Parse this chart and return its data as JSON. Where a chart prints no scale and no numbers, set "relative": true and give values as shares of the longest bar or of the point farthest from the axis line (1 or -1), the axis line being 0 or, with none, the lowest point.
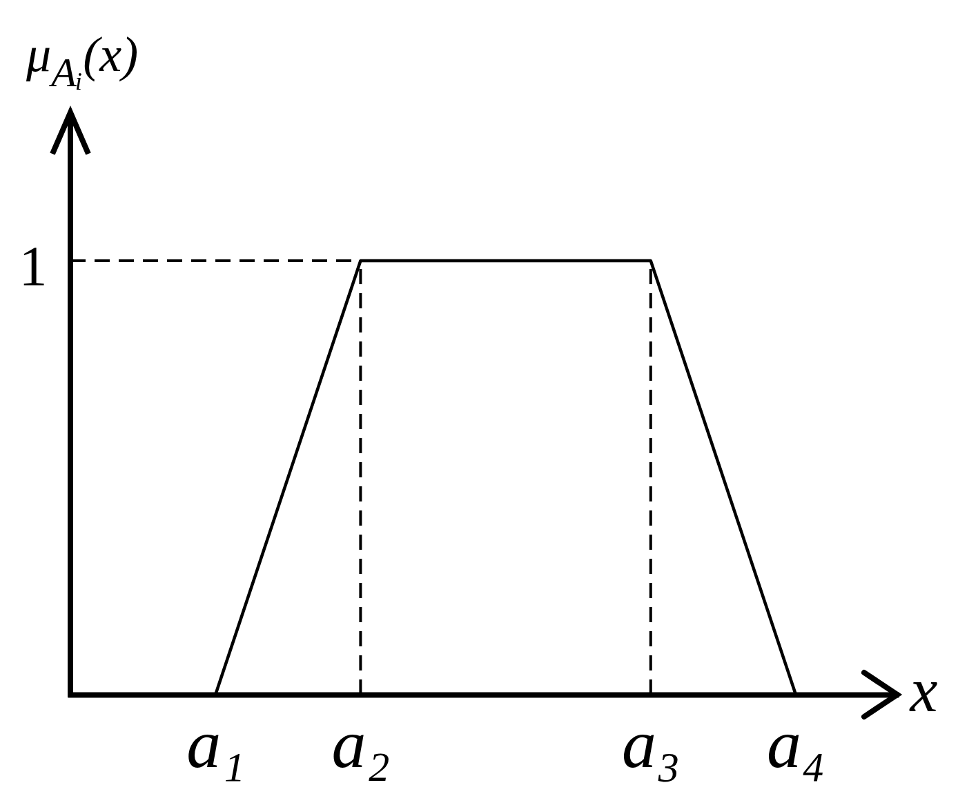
{
  "chart_data": {
    "type": "line",
    "ylabel": "μ$_{Aᵢ}$(x)",
    "xlabel": "x",
    "relative": true,
    "categories": [
      null,
      "a₁",
      "a₂",
      null,
      "a₃",
      "a₄"
    ],
    "series": [
      {
        "color": "#000000",
        "values": [
          null,
          0,
          1,
          1,
          1,
          0
        ]
      },
      {
        "color": "#000000",
        "line_style": "dashed",
        "values": [
          1,
          1,
          1,
          null,
          null,
          null
        ]
      },
      {
        "color": "#000000",
        "line_style": "dashed",
        "x": [
          "a₂",
          "a₂"
        ],
        "values": [
          0,
          1
        ]
      },
      {
        "color": "#000000",
        "line_style": "dashed",
        "x": [
          "a₃",
          "a₃"
        ],
        "values": [
          0,
          1
        ]
      }
    ],
    "annotations": [
      "1"
    ]
  }
}
